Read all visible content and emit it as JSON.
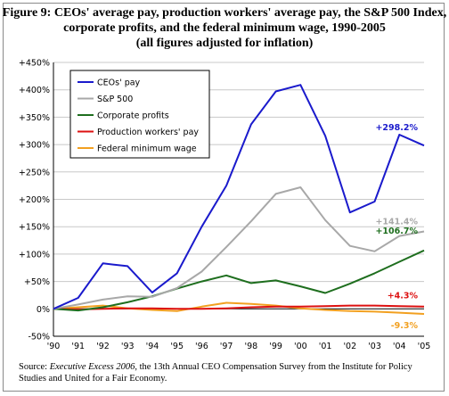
{
  "title_lines": [
    "Figure 9: CEOs' average pay, production workers' average pay, the S&P 500 Index,",
    "corporate profits, and the federal minimum wage, 1990-2005",
    "(all figures adjusted for inflation)"
  ],
  "source": {
    "prefix": "Source: ",
    "italic": "Executive Excess 2006",
    "rest": ", the 13th Annual CEO Compensation Survey from the Institute for Policy Studies and United for a Fair Economy."
  },
  "chart_data": {
    "type": "line",
    "x": [
      "'90",
      "'91",
      "'92",
      "'93",
      "'94",
      "'95",
      "'96",
      "'97",
      "'98",
      "'99",
      "'00",
      "'01",
      "'02",
      "'03",
      "'04",
      "'05"
    ],
    "ylim": [
      -50,
      450
    ],
    "yticks": [
      -50,
      0,
      50,
      100,
      150,
      200,
      250,
      300,
      350,
      400,
      450
    ],
    "ytick_labels": [
      "-50%",
      "0%",
      "+50%",
      "+100%",
      "+150%",
      "+200%",
      "+250%",
      "+300%",
      "+350%",
      "+400%",
      "+450%"
    ],
    "grid": "horizontal",
    "legend_position": "top-left",
    "series": [
      {
        "name": "CEOs' pay",
        "color": "#1a1acc",
        "values": [
          0,
          20,
          83,
          78,
          30,
          65,
          150,
          225,
          337,
          397,
          409,
          316,
          176,
          196,
          318,
          298.2
        ],
        "end_label": "+298.2%"
      },
      {
        "name": "S&P 500",
        "color": "#a8a8a8",
        "values": [
          0,
          8,
          17,
          23,
          22,
          38,
          68,
          113,
          160,
          210,
          222,
          162,
          115,
          105,
          133,
          141.4
        ],
        "end_label": "+141.4%"
      },
      {
        "name": "Corporate profits",
        "color": "#1e6e1e",
        "values": [
          0,
          -3,
          3,
          12,
          23,
          37,
          50,
          61,
          47,
          52,
          41,
          29,
          46,
          65,
          86,
          106.7
        ],
        "end_label": "+106.7%"
      },
      {
        "name": "Production workers' pay",
        "color": "#dd1111",
        "values": [
          0,
          -1,
          0,
          1,
          1,
          0,
          0,
          1,
          3,
          4,
          4,
          5,
          6,
          6,
          5,
          4.3
        ],
        "end_label": "+4.3%"
      },
      {
        "name": "Federal minimum wage",
        "color": "#f2a020",
        "values": [
          0,
          3,
          6,
          1,
          -2,
          -4,
          4,
          11,
          9,
          6,
          1,
          -2,
          -4,
          -5,
          -7,
          -9.3
        ],
        "end_label": "-9.3%"
      }
    ]
  }
}
